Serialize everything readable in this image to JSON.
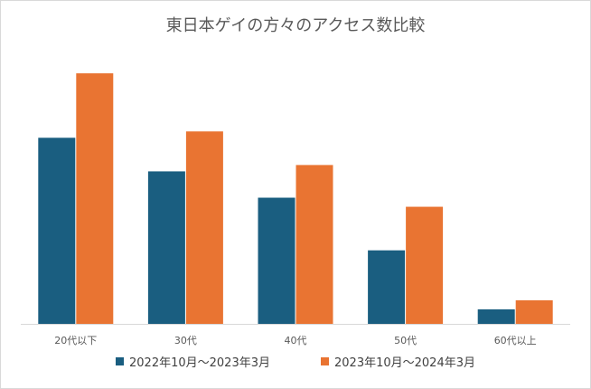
{
  "chart_data": {
    "type": "bar",
    "title": "東日本ゲイの方々のアクセス数比較",
    "categories": [
      "20代以下",
      "30代",
      "40代",
      "50代",
      "60代以上"
    ],
    "series": [
      {
        "name": "2022年10月～2023年3月",
        "color": "#1a5e80",
        "values": [
          205,
          168,
          139,
          81,
          16
        ]
      },
      {
        "name": "2023年10月～2024年3月",
        "color": "#e97432",
        "values": [
          276,
          212,
          175,
          129,
          26
        ]
      }
    ],
    "ylim": [
      0,
      290
    ],
    "grid": false,
    "legend": "bottom"
  }
}
